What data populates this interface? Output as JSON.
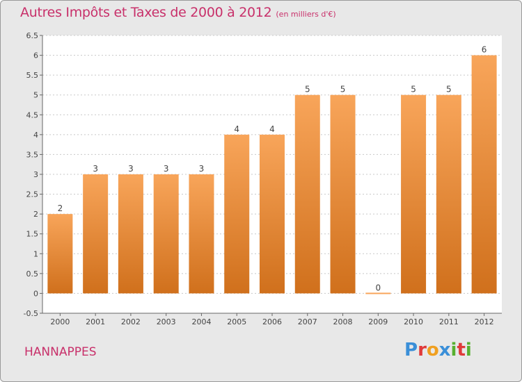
{
  "header": {
    "title": "Autres Impôts et Taxes de 2000 à 2012",
    "unit_note": "(en milliers d'€)"
  },
  "footer": {
    "town": "HANNAPPES",
    "brand_letters": [
      "P",
      "r",
      "o",
      "x",
      "i",
      "t",
      "i"
    ],
    "brand_colors": [
      "#3a8fd8",
      "#e03a3a",
      "#f0a020",
      "#3a8fd8",
      "#58b030",
      "#e03a3a",
      "#58b030"
    ]
  },
  "colors": {
    "title": "#c8306a",
    "bar_top": "#f8a55a",
    "bar_bottom": "#d0701c",
    "grid": "#c8c8c8",
    "panel_bg": "#ffffff"
  },
  "chart_data": {
    "type": "bar",
    "categories": [
      "2000",
      "2001",
      "2002",
      "2003",
      "2004",
      "2005",
      "2006",
      "2007",
      "2008",
      "2009",
      "2010",
      "2011",
      "2012"
    ],
    "values": [
      2,
      3,
      3,
      3,
      3,
      4,
      4,
      5,
      5,
      0,
      5,
      5,
      6
    ],
    "value_labels": [
      "2",
      "3",
      "3",
      "3",
      "3",
      "4",
      "4",
      "5",
      "5",
      "0",
      "5",
      "5",
      "6"
    ],
    "ylim": [
      -0.5,
      6.5
    ],
    "y_ticks": [
      "-0.5",
      "0",
      "0.5",
      "1",
      "1.5",
      "2",
      "2.5",
      "3",
      "3.5",
      "4",
      "4.5",
      "5",
      "5.5",
      "6",
      "6.5"
    ],
    "grid": true,
    "xlabel": "",
    "ylabel": ""
  }
}
